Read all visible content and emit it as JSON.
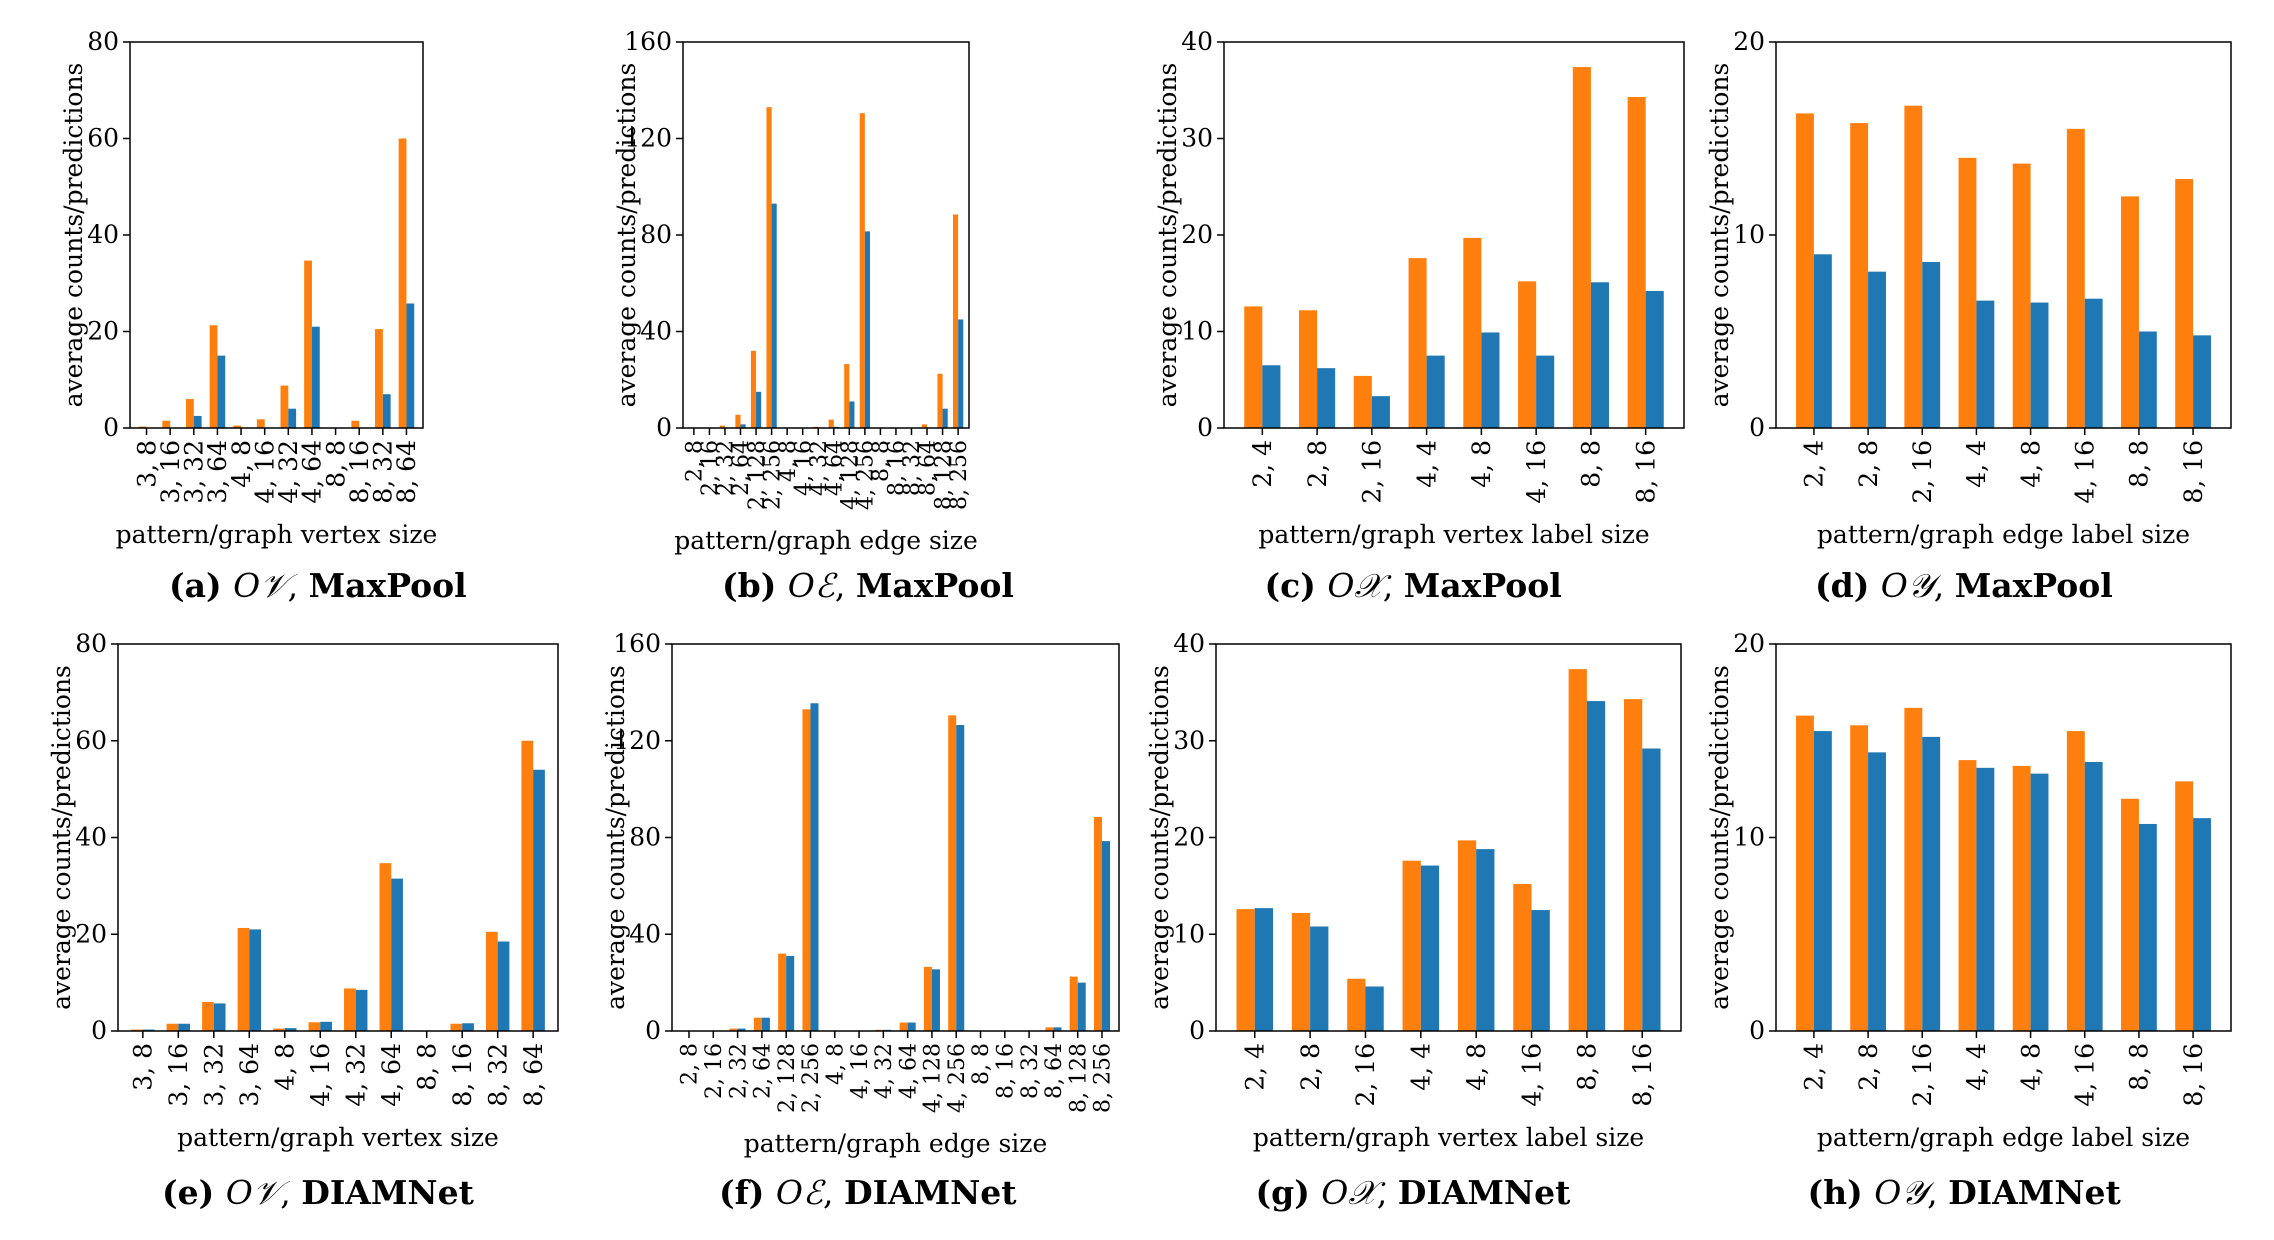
{
  "colors": {
    "counts": "#ff7f0e",
    "predictions": "#1f77b4"
  },
  "chart_data": [
    {
      "type": "bar",
      "id": "a",
      "caption_tag": "(a)",
      "symbol": "O𝒱",
      "model": "MaxPool",
      "ylabel": "average counts/predictions",
      "xlabel": "pattern/graph vertex size",
      "ylim": [
        0,
        80
      ],
      "yticks": [
        "0",
        "20",
        "40",
        "60",
        "80"
      ],
      "categories": [
        "3, 8",
        "3, 16",
        "3, 32",
        "3, 64",
        "4, 8",
        "4, 16",
        "4, 32",
        "4, 64",
        "8, 8",
        "8, 16",
        "8, 32",
        "8, 64"
      ],
      "series": [
        {
          "name": "counts",
          "values": [
            0.3,
            1.5,
            6.0,
            21.3,
            0.5,
            1.8,
            8.8,
            34.7,
            0,
            1.5,
            20.5,
            60.0
          ]
        },
        {
          "name": "predictions",
          "values": [
            0,
            0,
            2.5,
            15.0,
            0,
            0,
            4.0,
            21.0,
            0,
            0,
            7.0,
            25.8
          ]
        }
      ]
    },
    {
      "type": "bar",
      "id": "b",
      "caption_tag": "(b)",
      "symbol": "Oℰ",
      "model": "MaxPool",
      "ylabel": "average counts/predictions",
      "xlabel": "pattern/graph edge size",
      "ylim": [
        0,
        160
      ],
      "yticks": [
        "0",
        "40",
        "80",
        "120",
        "160"
      ],
      "categories": [
        "2, 8",
        "2, 16",
        "2, 32",
        "2, 64",
        "2, 128",
        "2, 256",
        "4, 8",
        "4, 16",
        "4, 32",
        "4, 64",
        "4, 128",
        "4, 256",
        "8, 8",
        "8, 16",
        "8, 32",
        "8, 64",
        "8, 128",
        "8, 256"
      ],
      "series": [
        {
          "name": "counts",
          "values": [
            0,
            0,
            1,
            5.5,
            32,
            133,
            0,
            0,
            0.5,
            3.5,
            26.5,
            130.5,
            0,
            0,
            0,
            1.5,
            22.5,
            88.5
          ]
        },
        {
          "name": "predictions",
          "values": [
            0,
            0,
            0,
            1.5,
            15,
            93,
            0,
            0,
            0,
            0.5,
            11,
            81.5,
            0,
            0,
            0,
            0,
            8,
            45
          ]
        }
      ]
    },
    {
      "type": "bar",
      "id": "c",
      "caption_tag": "(c)",
      "symbol": "O𝒳",
      "model": "MaxPool",
      "ylabel": "average counts/predictions",
      "xlabel": "pattern/graph vertex label size",
      "ylim": [
        0,
        40
      ],
      "yticks": [
        "0",
        "10",
        "20",
        "30",
        "40"
      ],
      "categories": [
        "2, 4",
        "2, 8",
        "2, 16",
        "4, 4",
        "4, 8",
        "4, 16",
        "8, 8",
        "8, 16"
      ],
      "series": [
        {
          "name": "counts",
          "values": [
            12.6,
            12.2,
            5.4,
            17.6,
            19.7,
            15.2,
            37.4,
            34.3
          ]
        },
        {
          "name": "predictions",
          "values": [
            6.5,
            6.2,
            3.3,
            7.5,
            9.9,
            7.5,
            15.1,
            14.2
          ]
        }
      ]
    },
    {
      "type": "bar",
      "id": "d",
      "caption_tag": "(d)",
      "symbol": "O𝒴",
      "model": "MaxPool",
      "ylabel": "average counts/predictions",
      "xlabel": "pattern/graph edge label size",
      "ylim": [
        0,
        20
      ],
      "yticks": [
        "0",
        "10",
        "20"
      ],
      "categories": [
        "2, 4",
        "2, 8",
        "2, 16",
        "4, 4",
        "4, 8",
        "4, 16",
        "8, 8",
        "8, 16"
      ],
      "series": [
        {
          "name": "counts",
          "values": [
            16.3,
            15.8,
            16.7,
            14.0,
            13.7,
            15.5,
            12.0,
            12.9
          ]
        },
        {
          "name": "predictions",
          "values": [
            9.0,
            8.1,
            8.6,
            6.6,
            6.5,
            6.7,
            5.0,
            4.8
          ]
        }
      ]
    },
    {
      "type": "bar",
      "id": "e",
      "caption_tag": "(e)",
      "symbol": "O𝒱",
      "model": "DIAMNet",
      "ylabel": "average counts/predictions",
      "xlabel": "pattern/graph vertex size",
      "ylim": [
        0,
        80
      ],
      "yticks": [
        "0",
        "20",
        "40",
        "60",
        "80"
      ],
      "categories": [
        "3, 8",
        "3, 16",
        "3, 32",
        "3, 64",
        "4, 8",
        "4, 16",
        "4, 32",
        "4, 64",
        "8, 8",
        "8, 16",
        "8, 32",
        "8, 64"
      ],
      "series": [
        {
          "name": "counts",
          "values": [
            0.3,
            1.5,
            6.0,
            21.3,
            0.5,
            1.8,
            8.8,
            34.7,
            0,
            1.5,
            20.5,
            60.0
          ]
        },
        {
          "name": "predictions",
          "values": [
            0.3,
            1.5,
            5.7,
            21.0,
            0.6,
            1.9,
            8.5,
            31.5,
            0,
            1.6,
            18.5,
            54.0
          ]
        }
      ]
    },
    {
      "type": "bar",
      "id": "f",
      "caption_tag": "(f)",
      "symbol": "Oℰ",
      "model": "DIAMNet",
      "ylabel": "average counts/predictions",
      "xlabel": "pattern/graph edge size",
      "ylim": [
        0,
        160
      ],
      "yticks": [
        "0",
        "40",
        "80",
        "120",
        "160"
      ],
      "categories": [
        "2, 8",
        "2, 16",
        "2, 32",
        "2, 64",
        "2, 128",
        "2, 256",
        "4, 8",
        "4, 16",
        "4, 32",
        "4, 64",
        "4, 128",
        "4, 256",
        "8, 8",
        "8, 16",
        "8, 32",
        "8, 64",
        "8, 128",
        "8, 256"
      ],
      "series": [
        {
          "name": "counts",
          "values": [
            0,
            0,
            1,
            5.5,
            32,
            133,
            0,
            0,
            0.5,
            3.5,
            26.5,
            130.5,
            0,
            0,
            0,
            1.5,
            22.5,
            88.5
          ]
        },
        {
          "name": "predictions",
          "values": [
            0,
            0,
            1,
            5.5,
            31,
            135.5,
            0,
            0,
            0.5,
            3.5,
            25.5,
            126.5,
            0,
            0,
            0,
            1.5,
            20,
            78.5
          ]
        }
      ]
    },
    {
      "type": "bar",
      "id": "g",
      "caption_tag": "(g)",
      "symbol": "O𝒳",
      "model": "DIAMNet",
      "ylabel": "average counts/predictions",
      "xlabel": "pattern/graph vertex label size",
      "ylim": [
        0,
        40
      ],
      "yticks": [
        "0",
        "10",
        "20",
        "30",
        "40"
      ],
      "categories": [
        "2, 4",
        "2, 8",
        "2, 16",
        "4, 4",
        "4, 8",
        "4, 16",
        "8, 8",
        "8, 16"
      ],
      "series": [
        {
          "name": "counts",
          "values": [
            12.6,
            12.2,
            5.4,
            17.6,
            19.7,
            15.2,
            37.4,
            34.3
          ]
        },
        {
          "name": "predictions",
          "values": [
            12.7,
            10.8,
            4.6,
            17.1,
            18.8,
            12.5,
            34.1,
            29.2
          ]
        }
      ]
    },
    {
      "type": "bar",
      "id": "h",
      "caption_tag": "(h)",
      "symbol": "O𝒴",
      "model": "DIAMNet",
      "ylabel": "average counts/predictions",
      "xlabel": "pattern/graph edge label size",
      "ylim": [
        0,
        20
      ],
      "yticks": [
        "0",
        "10",
        "20"
      ],
      "categories": [
        "2, 4",
        "2, 8",
        "2, 16",
        "4, 4",
        "4, 8",
        "4, 16",
        "8, 8",
        "8, 16"
      ],
      "series": [
        {
          "name": "counts",
          "values": [
            16.3,
            15.8,
            16.7,
            14.0,
            13.7,
            15.5,
            12.0,
            12.9
          ]
        },
        {
          "name": "predictions",
          "values": [
            15.5,
            14.4,
            15.2,
            13.6,
            13.3,
            13.9,
            10.7,
            11.0
          ]
        }
      ]
    }
  ]
}
